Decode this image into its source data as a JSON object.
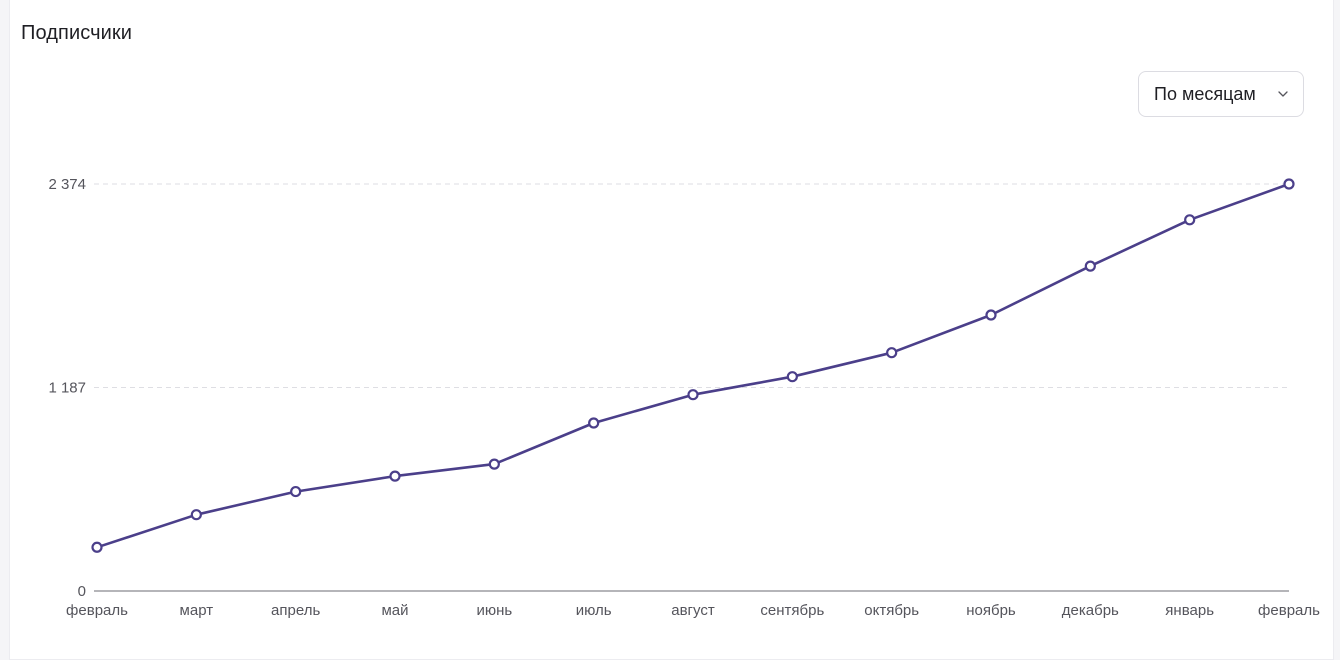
{
  "card": {
    "title": "Подписчики"
  },
  "period_select": {
    "value": "По месяцам"
  },
  "colors": {
    "line": "#4b3f8a",
    "grid": "#dedee3",
    "axis": "#6b6b73"
  },
  "chart_data": {
    "type": "line",
    "title": "Подписчики",
    "xlabel": "",
    "ylabel": "",
    "categories": [
      "февраль",
      "март",
      "апрель",
      "май",
      "июнь",
      "июль",
      "август",
      "сентябрь",
      "октябрь",
      "ноябрь",
      "декабрь",
      "январь",
      "февраль"
    ],
    "series": [
      {
        "values": [
          255,
          445,
          580,
          670,
          740,
          980,
          1145,
          1250,
          1390,
          1610,
          1895,
          2165,
          2374
        ]
      }
    ],
    "ylim": [
      0,
      2374
    ],
    "yticks": [
      0,
      1187,
      2374
    ],
    "ytick_labels": [
      "0",
      "1 187",
      "2 374"
    ],
    "grid": "horizontal dashed",
    "legend": "none"
  }
}
